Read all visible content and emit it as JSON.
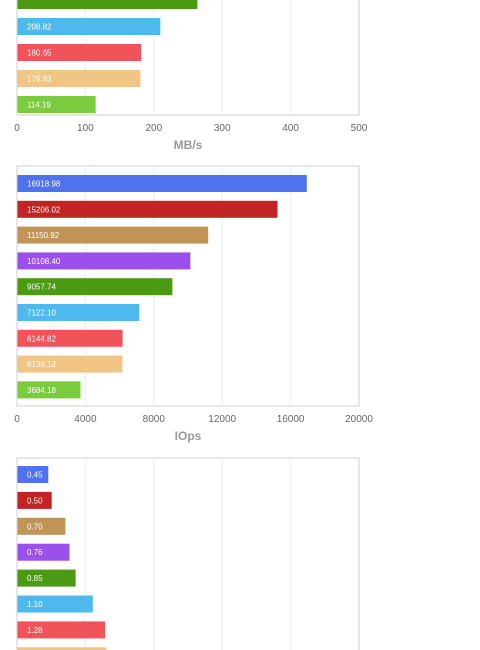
{
  "chart_data": [
    {
      "type": "bar",
      "orientation": "horizontal",
      "title": "",
      "xlabel": "MB/s",
      "ylabel": "",
      "xlim": [
        0,
        500
      ],
      "ticks": [
        "0",
        "100",
        "200",
        "300",
        "400",
        "500"
      ],
      "grid": true,
      "bars": [
        {
          "value": 263,
          "label": "",
          "color": "#4a9a12"
        },
        {
          "value": 208.82,
          "label": "208.82",
          "color": "#4fb8ec"
        },
        {
          "value": 180.65,
          "label": "180.65",
          "color": "#f0545a"
        },
        {
          "value": 179.83,
          "label": "179.83",
          "color": "#f0c585"
        },
        {
          "value": 114.19,
          "label": "114.19",
          "color": "#7acc3e"
        }
      ]
    },
    {
      "type": "bar",
      "orientation": "horizontal",
      "title": "",
      "xlabel": "IOps",
      "ylabel": "",
      "xlim": [
        0,
        20000
      ],
      "ticks": [
        "0",
        "4000",
        "8000",
        "12000",
        "16000",
        "20000"
      ],
      "grid": true,
      "bars": [
        {
          "value": 16918.98,
          "label": "16918.98",
          "color": "#4f72ee"
        },
        {
          "value": 15206.02,
          "label": "15206.02",
          "color": "#c02424"
        },
        {
          "value": 11150.92,
          "label": "11150.92",
          "color": "#c09455"
        },
        {
          "value": 10108.4,
          "label": "10108.40",
          "color": "#9b50ee"
        },
        {
          "value": 9057.74,
          "label": "9057.74",
          "color": "#4a9a12"
        },
        {
          "value": 7122.1,
          "label": "7122.10",
          "color": "#4fb8ec"
        },
        {
          "value": 6144.82,
          "label": "6144.82",
          "color": "#f0545a"
        },
        {
          "value": 6136.12,
          "label": "6136.12",
          "color": "#f0c585"
        },
        {
          "value": 3684.18,
          "label": "3684.18",
          "color": "#7acc3e"
        }
      ]
    },
    {
      "type": "bar",
      "orientation": "horizontal",
      "title": "",
      "xlabel": "",
      "ylabel": "",
      "xlim": [
        0,
        5
      ],
      "ticks": [],
      "grid": true,
      "bars": [
        {
          "value": 0.45,
          "label": "0.45",
          "color": "#4f72ee"
        },
        {
          "value": 0.5,
          "label": "0.50",
          "color": "#c02424"
        },
        {
          "value": 0.7,
          "label": "0.70",
          "color": "#c09455"
        },
        {
          "value": 0.76,
          "label": "0.76",
          "color": "#9b50ee"
        },
        {
          "value": 0.85,
          "label": "0.85",
          "color": "#4a9a12"
        },
        {
          "value": 1.1,
          "label": "1.10",
          "color": "#4fb8ec"
        },
        {
          "value": 1.28,
          "label": "1.28",
          "color": "#f0545a"
        },
        {
          "value": 1.3,
          "label": "",
          "color": "#f0c585"
        }
      ]
    }
  ]
}
